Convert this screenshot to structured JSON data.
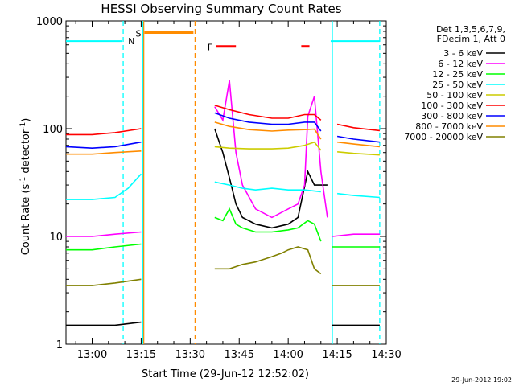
{
  "chart_data": {
    "type": "line",
    "title": "HESSI Observing Summary Count Rates",
    "xlabel": "Start Time (29-Jun-12 12:52:02)",
    "ylabel": "Count Rate (s⁻¹ detector⁻¹)",
    "ylabel_parts": {
      "main": "Count Rate (s",
      "exp1": "-1",
      "mid": " detector",
      "exp2": "-1",
      "end": ")"
    },
    "x_unit": "minutes after 00:00 UT (29-Jun-12)",
    "xlim": [
      772.0,
      870.0
    ],
    "ylim": [
      1,
      1000
    ],
    "yscale": "log",
    "grid": false,
    "legend_position": "top-right",
    "x_ticks": [
      {
        "v": 780,
        "label": "13:00"
      },
      {
        "v": 795,
        "label": "13:15"
      },
      {
        "v": 810,
        "label": "13:30"
      },
      {
        "v": 825,
        "label": "13:45"
      },
      {
        "v": 840,
        "label": "14:00"
      },
      {
        "v": 855,
        "label": "14:15"
      },
      {
        "v": 870,
        "label": "14:30"
      }
    ],
    "y_ticks": [
      {
        "v": 1,
        "label": "1"
      },
      {
        "v": 10,
        "label": "10"
      },
      {
        "v": 100,
        "label": "100"
      },
      {
        "v": 1000,
        "label": "1000"
      }
    ],
    "legend_header": [
      "Det 1,3,5,6,7,9,",
      "FDecim 1, Att 0"
    ],
    "footer_date": "29-Jun-2012 19:02",
    "gaps": [
      [
        795.5,
        817.5
      ],
      [
        853.0,
        853.5
      ]
    ],
    "series": [
      {
        "name": "3 - 6 keV",
        "color": "#000000",
        "points": [
          [
            772,
            1.5
          ],
          [
            780,
            1.5
          ],
          [
            787,
            1.5
          ],
          [
            795,
            1.6
          ],
          [
            817.5,
            100
          ],
          [
            820,
            60
          ],
          [
            822,
            35
          ],
          [
            824,
            20
          ],
          [
            826,
            15
          ],
          [
            830,
            13
          ],
          [
            835,
            12
          ],
          [
            840,
            13
          ],
          [
            843,
            15
          ],
          [
            846,
            40
          ],
          [
            848,
            30
          ],
          [
            852,
            30
          ],
          [
            853.5,
            1.5
          ],
          [
            860,
            1.5
          ],
          [
            868,
            1.5
          ]
        ]
      },
      {
        "name": "6 - 12 keV",
        "color": "#ff00ff",
        "points": [
          [
            772,
            10
          ],
          [
            780,
            10
          ],
          [
            787,
            10.5
          ],
          [
            795,
            11
          ],
          [
            817.5,
            160
          ],
          [
            820,
            120
          ],
          [
            822,
            280
          ],
          [
            824,
            60
          ],
          [
            826,
            30
          ],
          [
            830,
            18
          ],
          [
            835,
            15
          ],
          [
            840,
            18
          ],
          [
            843,
            20
          ],
          [
            845,
            30
          ],
          [
            846,
            130
          ],
          [
            848,
            200
          ],
          [
            850,
            40
          ],
          [
            852,
            15
          ],
          [
            853.5,
            10
          ],
          [
            860,
            10.5
          ],
          [
            868,
            10.5
          ]
        ]
      },
      {
        "name": "12 - 25 keV",
        "color": "#00ff00",
        "points": [
          [
            772,
            7.5
          ],
          [
            780,
            7.5
          ],
          [
            787,
            8
          ],
          [
            795,
            8.5
          ],
          [
            817.5,
            15
          ],
          [
            820,
            14
          ],
          [
            822,
            18
          ],
          [
            824,
            13
          ],
          [
            826,
            12
          ],
          [
            830,
            11
          ],
          [
            835,
            11
          ],
          [
            840,
            11.5
          ],
          [
            843,
            12
          ],
          [
            846,
            14
          ],
          [
            848,
            13
          ],
          [
            850,
            9
          ],
          [
            853.5,
            8
          ],
          [
            860,
            8
          ],
          [
            868,
            8
          ]
        ]
      },
      {
        "name": "25 - 50 keV",
        "color": "#00ffff",
        "points": [
          [
            772,
            22
          ],
          [
            780,
            22
          ],
          [
            787,
            23
          ],
          [
            791,
            28
          ],
          [
            795,
            38
          ],
          [
            817.5,
            32
          ],
          [
            822,
            30
          ],
          [
            826,
            28
          ],
          [
            830,
            27
          ],
          [
            835,
            28
          ],
          [
            840,
            27
          ],
          [
            845,
            27
          ],
          [
            850,
            26
          ],
          [
            855,
            25
          ],
          [
            860,
            24
          ],
          [
            868,
            23
          ]
        ]
      },
      {
        "name": "50 - 100 keV",
        "color": "#cccc00",
        "points": [
          [
            817.5,
            68
          ],
          [
            822,
            66
          ],
          [
            828,
            65
          ],
          [
            835,
            65
          ],
          [
            840,
            66
          ],
          [
            845,
            70
          ],
          [
            848,
            75
          ],
          [
            850,
            63
          ],
          [
            855,
            61
          ],
          [
            860,
            59
          ],
          [
            868,
            57
          ]
        ]
      },
      {
        "name": "100 - 300 keV",
        "color": "#ff0000",
        "points": [
          [
            772,
            88
          ],
          [
            780,
            88
          ],
          [
            787,
            92
          ],
          [
            795,
            100
          ],
          [
            817.5,
            165
          ],
          [
            822,
            150
          ],
          [
            828,
            135
          ],
          [
            835,
            125
          ],
          [
            840,
            125
          ],
          [
            845,
            135
          ],
          [
            848,
            135
          ],
          [
            850,
            120
          ],
          [
            855,
            110
          ],
          [
            860,
            102
          ],
          [
            868,
            96
          ]
        ]
      },
      {
        "name": "300 - 800 keV",
        "color": "#0000ff",
        "points": [
          [
            772,
            68
          ],
          [
            780,
            66
          ],
          [
            787,
            68
          ],
          [
            795,
            75
          ],
          [
            817.5,
            140
          ],
          [
            822,
            125
          ],
          [
            828,
            115
          ],
          [
            835,
            110
          ],
          [
            840,
            110
          ],
          [
            845,
            115
          ],
          [
            848,
            115
          ],
          [
            850,
            95
          ],
          [
            855,
            85
          ],
          [
            860,
            80
          ],
          [
            868,
            75
          ]
        ]
      },
      {
        "name": "800 - 7000 keV",
        "color": "#ff8c00",
        "points": [
          [
            772,
            58
          ],
          [
            780,
            58
          ],
          [
            787,
            60
          ],
          [
            795,
            62
          ],
          [
            817.5,
            115
          ],
          [
            822,
            105
          ],
          [
            828,
            98
          ],
          [
            835,
            95
          ],
          [
            840,
            97
          ],
          [
            845,
            98
          ],
          [
            848,
            99
          ],
          [
            850,
            80
          ],
          [
            855,
            75
          ],
          [
            860,
            72
          ],
          [
            868,
            68
          ]
        ]
      },
      {
        "name": "7000 - 20000 keV",
        "color": "#808000",
        "points": [
          [
            772,
            3.5
          ],
          [
            780,
            3.5
          ],
          [
            787,
            3.7
          ],
          [
            795,
            4
          ],
          [
            817.5,
            5
          ],
          [
            822,
            5
          ],
          [
            826,
            5.5
          ],
          [
            830,
            5.8
          ],
          [
            835,
            6.5
          ],
          [
            838,
            7
          ],
          [
            840,
            7.5
          ],
          [
            843,
            8
          ],
          [
            846,
            7.5
          ],
          [
            848,
            5
          ],
          [
            850,
            4.5
          ],
          [
            853.5,
            3.5
          ],
          [
            860,
            3.5
          ],
          [
            868,
            3.5
          ]
        ]
      }
    ],
    "markers": [
      {
        "label": "N",
        "color": "#00ffff",
        "y": 650,
        "segments": [
          [
            772,
            789
          ],
          [
            853,
            868
          ]
        ],
        "label_at": 790
      }
    ],
    "saa_lines": {
      "color": "#00ffff",
      "solid": [
        [
          795.5
        ],
        [
          853.5
        ]
      ],
      "dashed": [
        789.5,
        868
      ]
    },
    "flags": [
      {
        "label": "S",
        "color": "#ff8c00",
        "y": 780,
        "x0": 796,
        "x1": 811
      },
      {
        "label": "F",
        "color": "#ff0000",
        "y": 580,
        "x0": 818,
        "x1": 824,
        "extra": [
          [
            844,
            846.5
          ]
        ]
      }
    ],
    "vlines": [
      {
        "x": 795.8,
        "color": "#ff8c00",
        "style": "solid"
      },
      {
        "x": 811.5,
        "color": "#ff8c00",
        "style": "dashed"
      },
      {
        "x": 789.5,
        "color": "#00ffff",
        "style": "dashed"
      },
      {
        "x": 795.5,
        "color": "#00ffff",
        "style": "solid"
      },
      {
        "x": 853.5,
        "color": "#00ffff",
        "style": "solid"
      },
      {
        "x": 868,
        "color": "#00ffff",
        "style": "dashed"
      }
    ]
  }
}
